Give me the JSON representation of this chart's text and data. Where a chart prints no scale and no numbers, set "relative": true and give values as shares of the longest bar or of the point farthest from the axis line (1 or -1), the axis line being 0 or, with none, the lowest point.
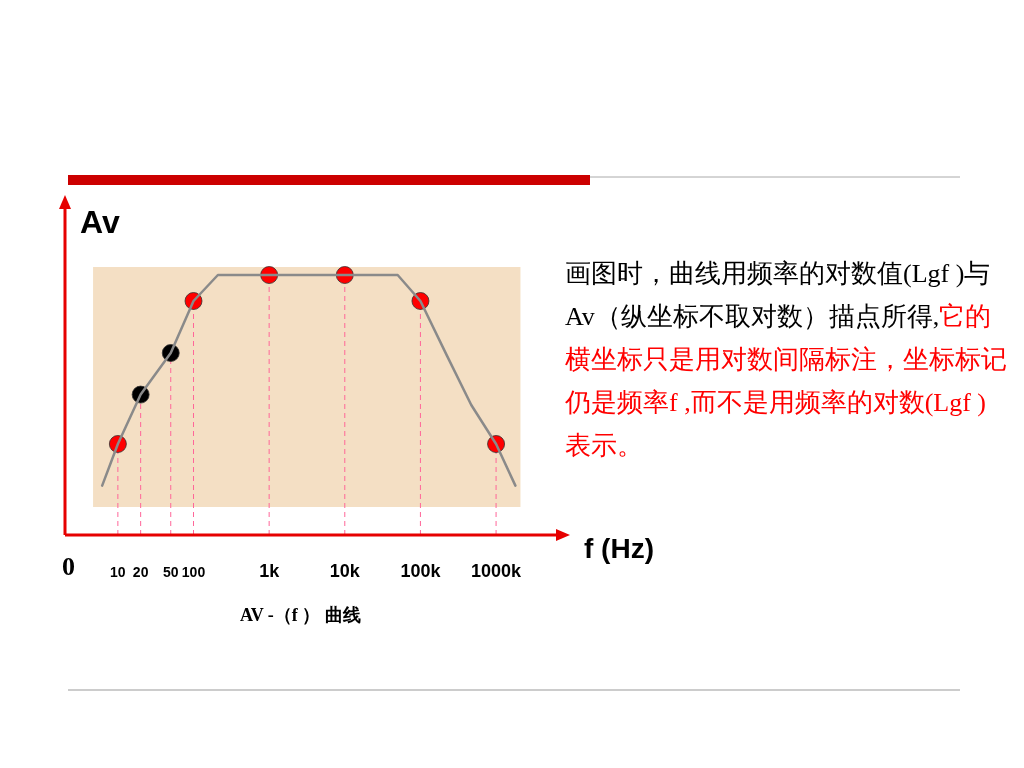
{
  "chart_data": {
    "type": "line",
    "xlabel": "f (Hz)",
    "ylabel": "Av",
    "relative": true,
    "log": "x",
    "xlim": [
      2,
      7000000
    ],
    "xticks": [
      10,
      20,
      50,
      100,
      {
        "value": 1000,
        "label": "1k"
      },
      {
        "value": 10000,
        "label": "10k"
      },
      {
        "value": 100000,
        "label": "100k"
      },
      {
        "value": 1000000,
        "label": "1000k"
      }
    ],
    "bands": [
      {
        "axis": "x",
        "from": 4.7,
        "to": 2100000,
        "color": "#f4dfc4"
      }
    ],
    "series": [
      {
        "type": "line",
        "color": "#8a8a8a",
        "marker": "none",
        "x": [
          6.2,
          10,
          20,
          50,
          100,
          210,
          1000,
          10000,
          50000,
          100000,
          224000,
          470000,
          1000000,
          1800000
        ],
        "values": [
          0.19,
          0.35,
          0.54,
          0.7,
          0.9,
          1,
          1,
          1,
          1,
          0.9,
          0.69,
          0.5,
          0.35,
          0.19
        ]
      },
      {
        "type": "scatter",
        "marker": "circle",
        "colors": [
          "#ff0000",
          "#000000",
          "#000000",
          "#ff0000",
          "#ff0000",
          "#ff0000",
          "#ff0000",
          "#ff0000"
        ],
        "x": [
          10,
          20,
          50,
          100,
          1000,
          10000,
          100000,
          1000000
        ],
        "values": [
          0.35,
          0.54,
          0.7,
          0.9,
          1,
          1,
          0.9,
          0.35
        ]
      }
    ],
    "ref_lines": [
      {
        "axis": "x",
        "value": 10,
        "color": "#ff6699",
        "line_style": "dashed"
      },
      {
        "axis": "x",
        "value": 20,
        "color": "#ff6699",
        "line_style": "dashed"
      },
      {
        "axis": "x",
        "value": 50,
        "color": "#ff6699",
        "line_style": "dashed"
      },
      {
        "axis": "x",
        "value": 100,
        "color": "#ff6699",
        "line_style": "dashed"
      },
      {
        "axis": "x",
        "value": 1000,
        "color": "#ff6699",
        "line_style": "dashed"
      },
      {
        "axis": "x",
        "value": 10000,
        "color": "#ff6699",
        "line_style": "dashed"
      },
      {
        "axis": "x",
        "value": 100000,
        "color": "#ff6699",
        "line_style": "dashed"
      },
      {
        "axis": "x",
        "value": 1000000,
        "color": "#ff6699",
        "line_style": "dashed"
      }
    ],
    "annotations": [
      "0",
      "画图时，曲线用频率的对数值(Lgf )与Av（纵坐标不取对数）描点所得,",
      "它的横坐标只是用对数间隔标注，坐标标记仍是频率f ,而不是用频率的对数(Lgf )表示。",
      "AV -（f ） 曲线"
    ]
  }
}
